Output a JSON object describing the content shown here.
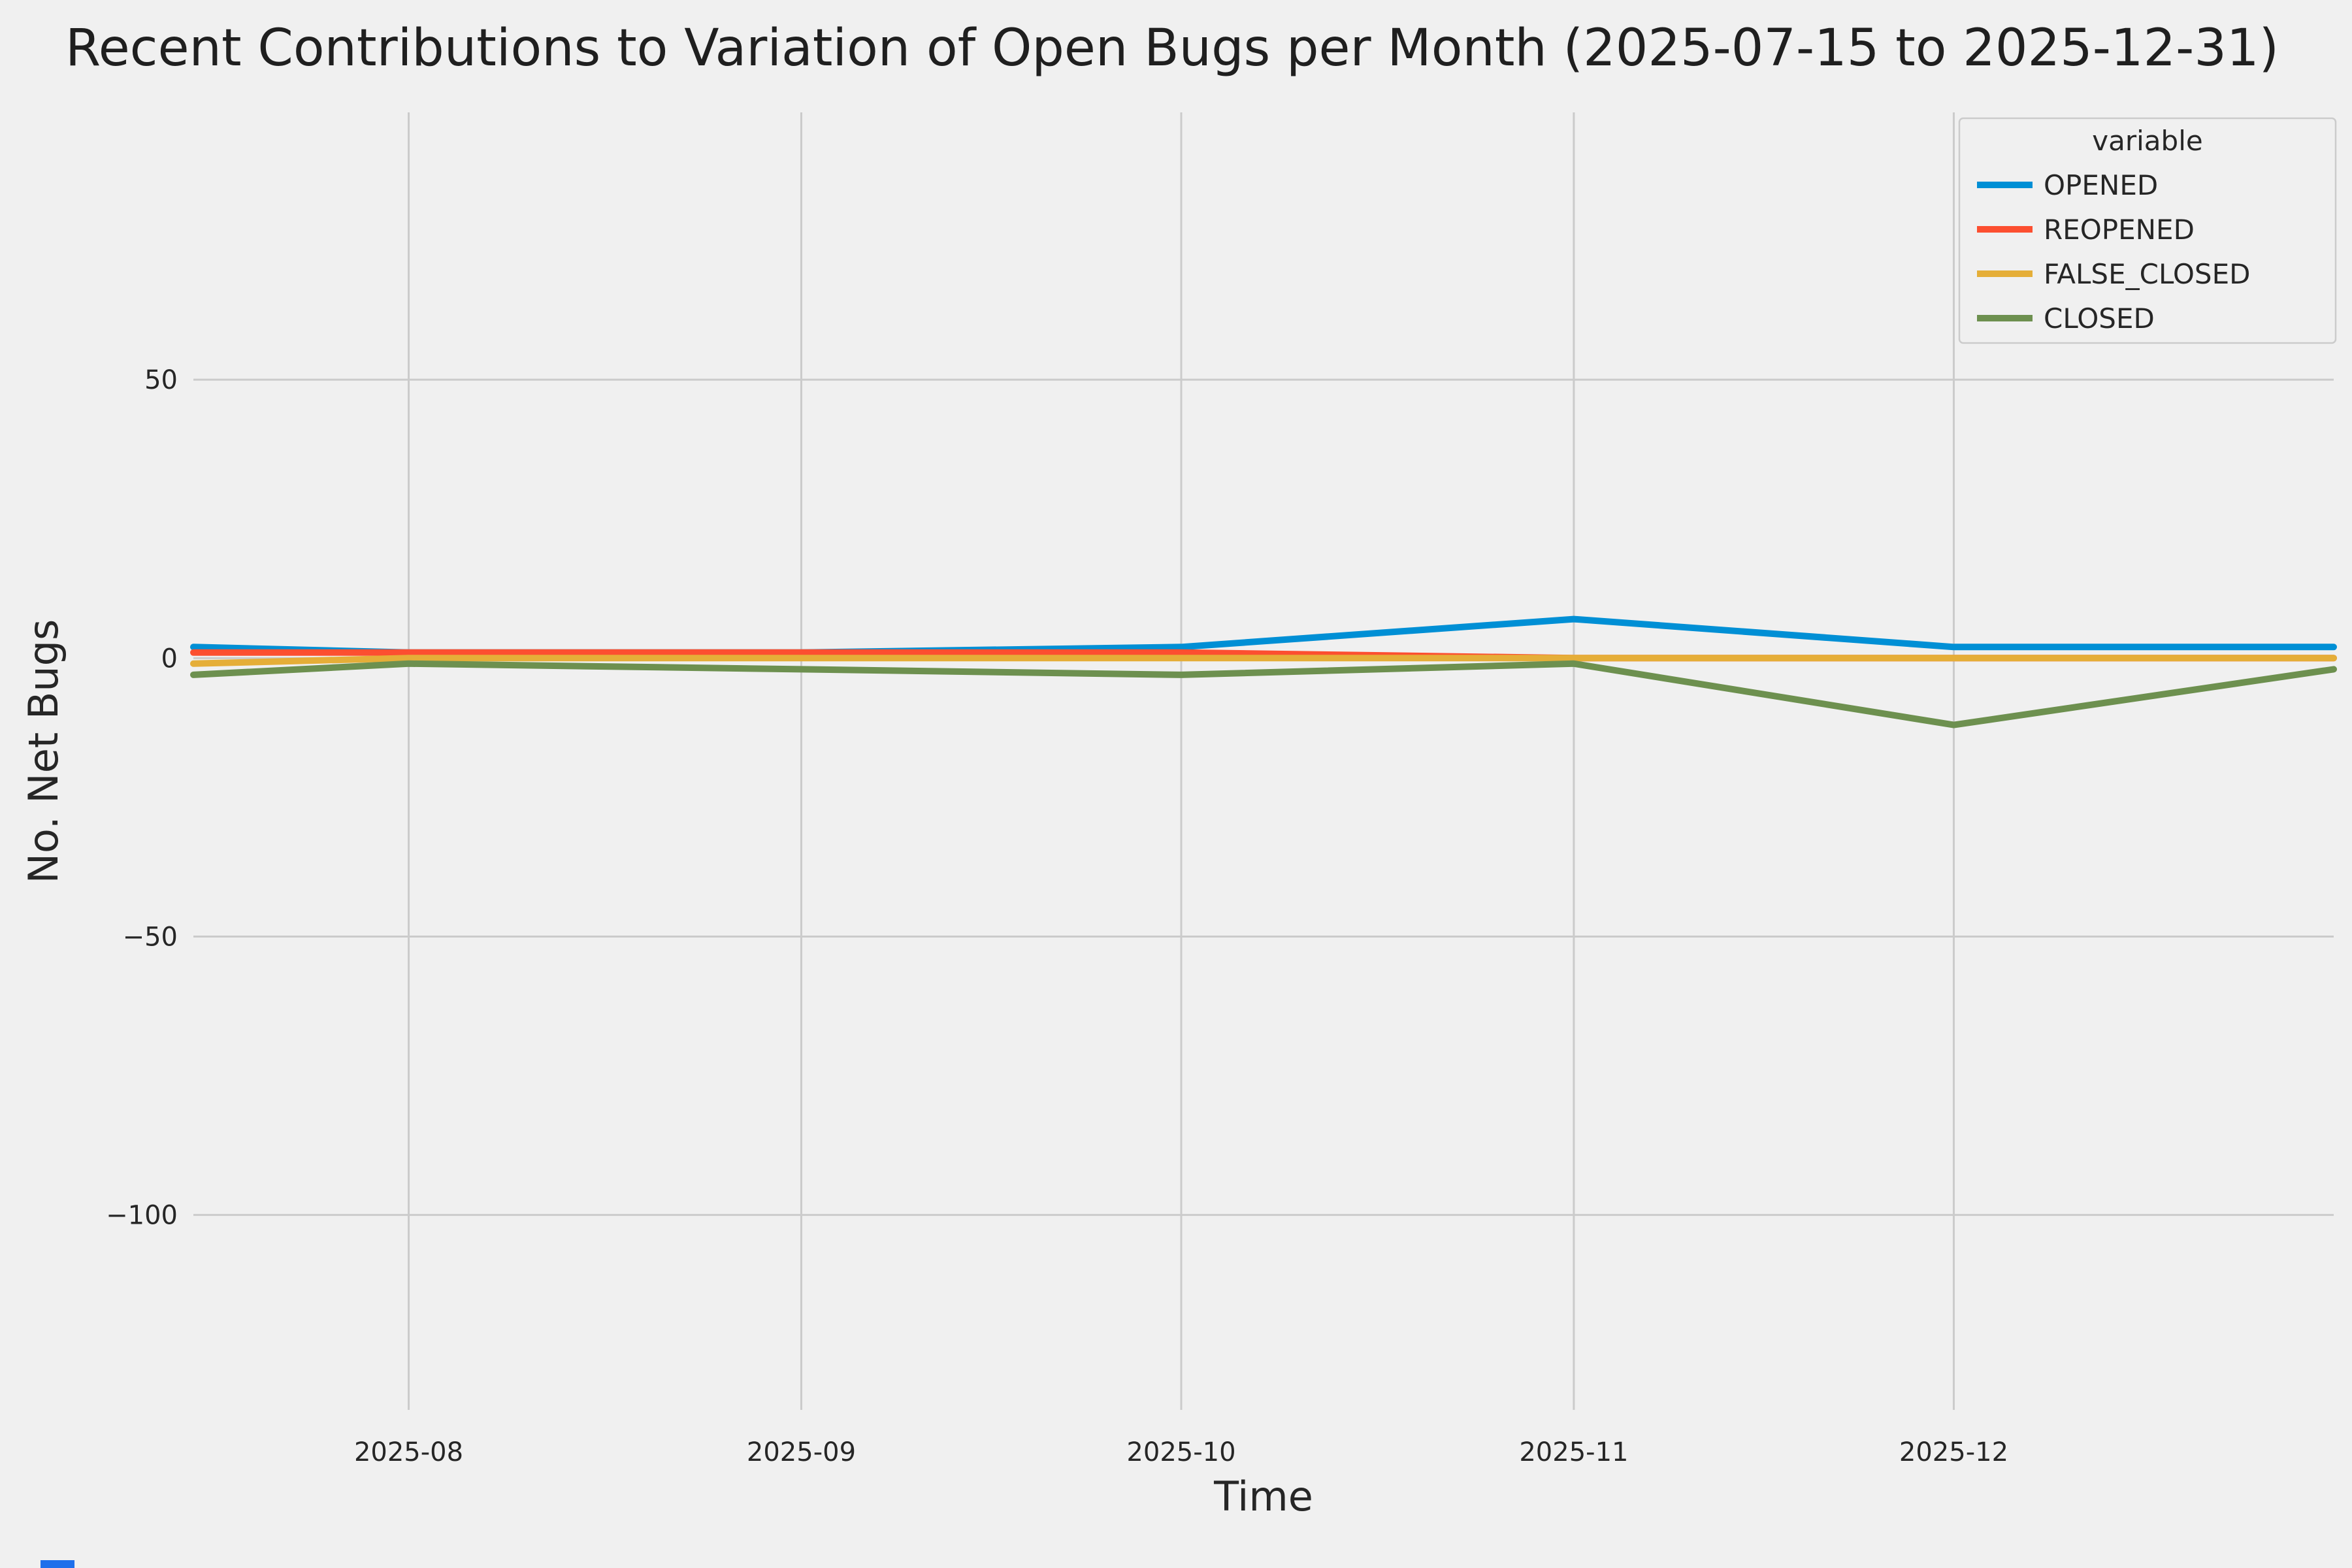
{
  "chart_data": {
    "type": "line",
    "title": "Recent Contributions to Variation of Open Bugs per Month (2025-07-15 to 2025-12-31)",
    "xlabel": "Time",
    "ylabel": "No. Net Bugs",
    "legend_title": "variable",
    "legend_position": "upper right",
    "grid": true,
    "background_color": "#f0f0f0",
    "grid_color": "#cbcbcb",
    "text_color": "#262626",
    "x": [
      "2025-07-15",
      "2025-08-01",
      "2025-09-01",
      "2025-10-01",
      "2025-11-01",
      "2025-12-01",
      "2025-12-31"
    ],
    "series": [
      {
        "name": "OPENED",
        "color": "#008fd5",
        "values": [
          2,
          1,
          1,
          2,
          7,
          2,
          2
        ]
      },
      {
        "name": "REOPENED",
        "color": "#fc4f30",
        "values": [
          1,
          1,
          1,
          1,
          0,
          0,
          0
        ]
      },
      {
        "name": "FALSE_CLOSED",
        "color": "#e5ae38",
        "values": [
          -1,
          0,
          0,
          0,
          0,
          0,
          0
        ]
      },
      {
        "name": "CLOSED",
        "color": "#6d904f",
        "values": [
          -3,
          -1,
          -2,
          -3,
          -1,
          -12,
          -2
        ]
      }
    ],
    "x_ticks": [
      {
        "value": "2025-08-01",
        "label": "2025-08"
      },
      {
        "value": "2025-09-01",
        "label": "2025-09"
      },
      {
        "value": "2025-10-01",
        "label": "2025-10"
      },
      {
        "value": "2025-11-01",
        "label": "2025-11"
      },
      {
        "value": "2025-12-01",
        "label": "2025-12"
      }
    ],
    "y_ticks": [
      {
        "value": 50,
        "label": "50"
      },
      {
        "value": 0,
        "label": "0"
      },
      {
        "value": -50,
        "label": "−50"
      },
      {
        "value": -100,
        "label": "−100"
      }
    ],
    "xlim": [
      "2025-07-15",
      "2025-12-31"
    ],
    "ylim": [
      -135,
      98
    ]
  },
  "artifacts": {
    "bottom_left_fragment_color": "#1f6feb"
  }
}
